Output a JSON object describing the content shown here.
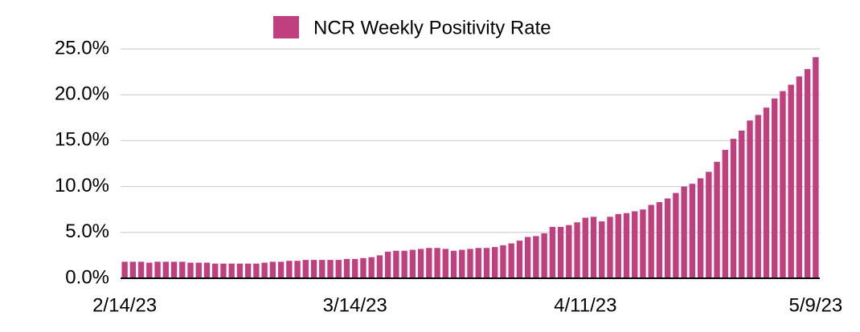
{
  "chart_data": {
    "type": "bar",
    "legend": "top",
    "series": [
      {
        "name": "NCR Weekly Positivity Rate",
        "color": "#bf3f7f",
        "values": [
          1.8,
          1.8,
          1.8,
          1.7,
          1.8,
          1.8,
          1.8,
          1.8,
          1.7,
          1.7,
          1.7,
          1.6,
          1.6,
          1.6,
          1.6,
          1.6,
          1.6,
          1.7,
          1.8,
          1.8,
          1.9,
          1.9,
          2.0,
          2.0,
          2.0,
          2.0,
          2.0,
          2.1,
          2.1,
          2.2,
          2.3,
          2.5,
          2.9,
          3.0,
          3.0,
          3.1,
          3.2,
          3.3,
          3.3,
          3.2,
          3.0,
          3.1,
          3.2,
          3.3,
          3.3,
          3.4,
          3.6,
          3.8,
          4.1,
          4.5,
          4.6,
          4.9,
          5.6,
          5.6,
          5.8,
          6.1,
          6.6,
          6.7,
          6.2,
          6.7,
          7.0,
          7.1,
          7.3,
          7.5,
          8.0,
          8.3,
          8.7,
          9.3,
          10.0,
          10.3,
          10.9,
          11.6,
          12.7,
          14.0,
          15.2,
          16.1,
          17.2,
          17.8,
          18.6,
          19.6,
          20.4,
          21.1,
          22.0,
          22.8,
          24.1
        ]
      }
    ],
    "categories": [
      "2/14/23",
      null,
      null,
      null,
      null,
      null,
      null,
      null,
      null,
      null,
      null,
      null,
      null,
      null,
      null,
      null,
      null,
      null,
      null,
      null,
      null,
      null,
      null,
      null,
      null,
      null,
      null,
      null,
      "3/14/23",
      null,
      null,
      null,
      null,
      null,
      null,
      null,
      null,
      null,
      null,
      null,
      null,
      null,
      null,
      null,
      null,
      null,
      null,
      null,
      null,
      null,
      null,
      null,
      null,
      null,
      null,
      null,
      "4/11/23",
      null,
      null,
      null,
      null,
      null,
      null,
      null,
      null,
      null,
      null,
      null,
      null,
      null,
      null,
      null,
      null,
      null,
      null,
      null,
      null,
      null,
      null,
      null,
      null,
      null,
      null,
      null,
      "5/9/23"
    ],
    "ylim": [
      0,
      25
    ],
    "yticks": [
      {
        "value": 0,
        "label": "0.0%"
      },
      {
        "value": 5,
        "label": "5.0%"
      },
      {
        "value": 10,
        "label": "10.0%"
      },
      {
        "value": 15,
        "label": "15.0%"
      },
      {
        "value": 20,
        "label": "20.0%"
      },
      {
        "value": 25,
        "label": "25.0%"
      }
    ],
    "grid": true
  }
}
